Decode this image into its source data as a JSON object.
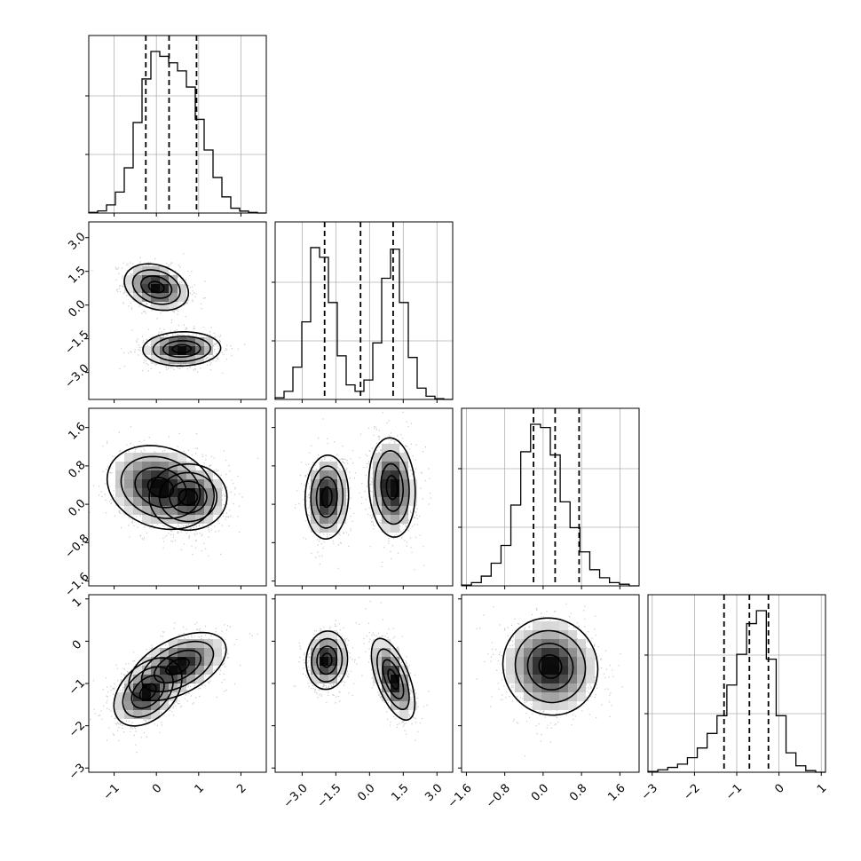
{
  "chart_data": {
    "type": "corner",
    "grid": true,
    "parameters": [
      {
        "index": 0,
        "range": [
          -1.6,
          2.6
        ],
        "ticks": [
          -1,
          0,
          1,
          2
        ],
        "tick_labels": [
          "−1",
          "0",
          "1",
          "2"
        ],
        "quantiles": [
          -0.25,
          0.3,
          0.95
        ],
        "hist_bins": [
          0.004,
          0.013,
          0.05,
          0.13,
          0.28,
          0.56,
          0.83,
          1.0,
          0.97,
          0.93,
          0.88,
          0.78,
          0.58,
          0.39,
          0.22,
          0.1,
          0.03,
          0.012,
          0.004,
          0.0
        ]
      },
      {
        "index": 1,
        "range": [
          -4.2,
          3.7
        ],
        "ticks": [
          -3.0,
          -1.5,
          0.0,
          1.5,
          3.0
        ],
        "tick_labels": [
          "−3.0",
          "−1.5",
          "0.0",
          "1.5",
          "3.0"
        ],
        "quantiles": [
          -2.0,
          -0.4,
          1.05
        ],
        "hist_bins": [
          0.01,
          0.05,
          0.2,
          0.48,
          0.94,
          0.88,
          0.6,
          0.27,
          0.09,
          0.05,
          0.12,
          0.35,
          0.75,
          0.93,
          0.6,
          0.26,
          0.07,
          0.02,
          0.005,
          0.0
        ]
      },
      {
        "index": 2,
        "range": [
          -1.7,
          2.0
        ],
        "ticks": [
          -1.6,
          -0.8,
          0.0,
          0.8,
          1.6
        ],
        "tick_labels": [
          "−1.6",
          "−0.8",
          "0.0",
          "0.8",
          "1.6"
        ],
        "quantiles": [
          -0.2,
          0.25,
          0.75
        ],
        "hist_bins": [
          0.005,
          0.02,
          0.06,
          0.14,
          0.25,
          0.5,
          0.83,
          1.0,
          0.98,
          0.81,
          0.52,
          0.36,
          0.21,
          0.1,
          0.05,
          0.02,
          0.01,
          0.0
        ]
      },
      {
        "index": 3,
        "range": [
          -3.1,
          1.1
        ],
        "ticks": [
          -3,
          -2,
          -1,
          0,
          1
        ],
        "tick_labels": [
          "−3",
          "−2",
          "−1",
          "0",
          "1"
        ],
        "quantiles": [
          -1.3,
          -0.7,
          -0.25
        ],
        "hist_bins": [
          0.005,
          0.015,
          0.03,
          0.05,
          0.09,
          0.15,
          0.24,
          0.35,
          0.54,
          0.73,
          0.92,
          1.0,
          0.7,
          0.35,
          0.12,
          0.04,
          0.01,
          0.0
        ]
      }
    ],
    "density_blobs": [
      {
        "pair": [
          0,
          1
        ],
        "blobs": [
          {
            "center": [
              0.0,
              0.8
            ],
            "sd": [
              0.33,
              0.45
            ],
            "rho": -0.25
          },
          {
            "center": [
              0.6,
              -1.95
            ],
            "sd": [
              0.4,
              0.33
            ],
            "rho": 0.05
          }
        ]
      },
      {
        "pair": [
          0,
          2
        ],
        "blobs": [
          {
            "center": [
              0.1,
              0.35
            ],
            "sd": [
              0.55,
              0.38
            ],
            "rho": -0.2
          },
          {
            "center": [
              0.75,
              0.15
            ],
            "sd": [
              0.4,
              0.3
            ],
            "rho": 0.0
          }
        ]
      },
      {
        "pair": [
          0,
          3
        ],
        "blobs": [
          {
            "center": [
              0.5,
              -0.6
            ],
            "sd": [
              0.5,
              0.35
            ],
            "rho": 0.5
          },
          {
            "center": [
              -0.2,
              -1.2
            ],
            "sd": [
              0.35,
              0.35
            ],
            "rho": 0.4
          }
        ]
      },
      {
        "pair": [
          1,
          2
        ],
        "blobs": [
          {
            "center": [
              -1.9,
              0.15
            ],
            "sd": [
              0.42,
              0.38
            ],
            "rho": 0.05
          },
          {
            "center": [
              1.0,
              0.35
            ],
            "sd": [
              0.45,
              0.45
            ],
            "rho": -0.1
          }
        ]
      },
      {
        "pair": [
          1,
          3
        ],
        "blobs": [
          {
            "center": [
              -1.9,
              -0.45
            ],
            "sd": [
              0.4,
              0.3
            ],
            "rho": 0.05
          },
          {
            "center": [
              1.05,
              -0.9
            ],
            "sd": [
              0.42,
              0.42
            ],
            "rho": -0.6
          }
        ]
      },
      {
        "pair": [
          2,
          3
        ],
        "blobs": [
          {
            "center": [
              0.15,
              -0.6
            ],
            "sd": [
              0.43,
              0.5
            ],
            "rho": -0.05
          }
        ]
      }
    ]
  }
}
